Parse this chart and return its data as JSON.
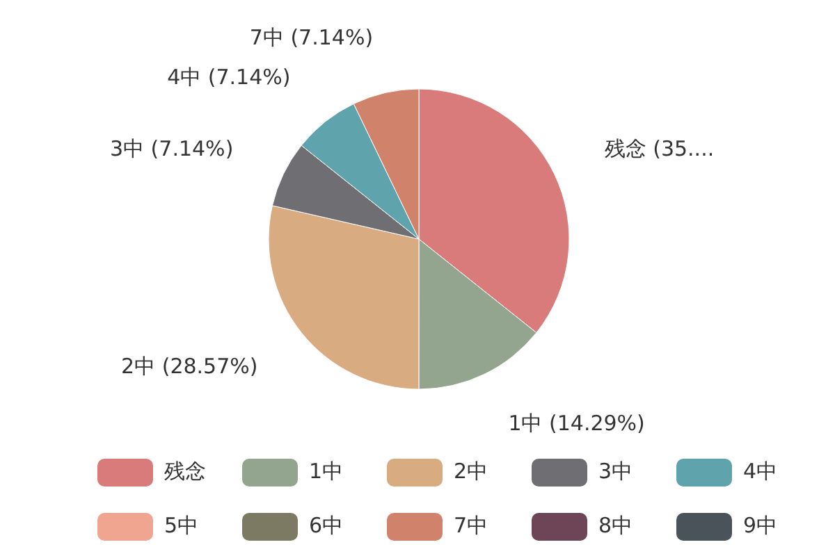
{
  "chart_data": {
    "type": "pie",
    "categories": [
      "残念",
      "1中",
      "2中",
      "3中",
      "4中",
      "5中",
      "6中",
      "7中",
      "8中",
      "9中"
    ],
    "values": [
      35.71,
      14.29,
      28.57,
      7.14,
      7.14,
      0,
      0,
      7.14,
      0,
      0
    ],
    "colors": [
      "#d97b7b",
      "#94a58f",
      "#d9ab80",
      "#6e6e73",
      "#5fa3ad",
      "#efa58f",
      "#7d7a63",
      "#d0826a",
      "#6d4556",
      "#4a535a"
    ],
    "value_labels": [
      "残念 (35....",
      "1中 (14.29%)",
      "2中 (28.57%)",
      "3中 (7.14%)",
      "4中 (7.14%)",
      null,
      null,
      "7中 (7.14%)",
      null,
      null
    ],
    "legend": "bottom"
  }
}
